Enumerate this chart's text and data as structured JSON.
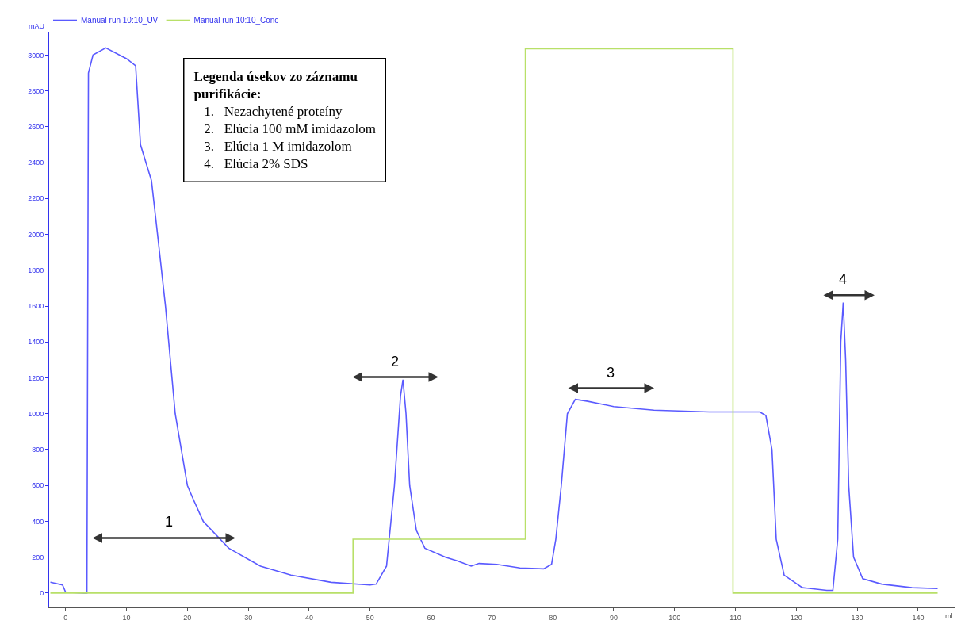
{
  "chart_data": {
    "type": "line",
    "xlabel": "ml",
    "ylabel": "mAU",
    "xlim": [
      -2.7,
      146
    ],
    "xticks": [
      0,
      10,
      20,
      30,
      40,
      50,
      60,
      70,
      80,
      90,
      100,
      110,
      120,
      130,
      140
    ],
    "ylim": [
      -80,
      3130
    ],
    "yticks": [
      0,
      200,
      400,
      600,
      800,
      1000,
      1200,
      1400,
      1600,
      1800,
      2000,
      2200,
      2400,
      2600,
      2800,
      3000
    ],
    "legend": "top left",
    "marker": "none",
    "line_style": "solid",
    "series": [
      {
        "name": "Manual run 10:10_UV",
        "color": "#5a5aff",
        "x": [
          -2.5,
          -0.5,
          0,
          3,
          3.5,
          3.75,
          4.5,
          6.6,
          10,
          11.5,
          12.3,
          14.1,
          15.1,
          16.4,
          18,
          20,
          21,
          22.6,
          26.8,
          32,
          37,
          43.6,
          50,
          51,
          52.7,
          54,
          55,
          55.4,
          55.9,
          56.5,
          57.6,
          59,
          62.4,
          64.3,
          66.6,
          67.9,
          70.8,
          74.6,
          78.5,
          79.8,
          80.5,
          81.4,
          82.4,
          83.7,
          85.6,
          90,
          96.6,
          105.7,
          114,
          115,
          116,
          116.7,
          118,
          121,
          125,
          126,
          126.8,
          127.3,
          127.7,
          128.1,
          128.6,
          129.4,
          130.9,
          134,
          139,
          143.2
        ],
        "values": [
          60,
          45,
          5,
          0,
          0,
          2900,
          3000,
          3040,
          2980,
          2940,
          2500,
          2300,
          2000,
          1600,
          1000,
          600,
          520,
          400,
          250,
          150,
          100,
          60,
          45,
          50,
          150,
          600,
          1100,
          1190,
          1000,
          600,
          350,
          250,
          200,
          180,
          150,
          165,
          160,
          140,
          135,
          160,
          300,
          600,
          1000,
          1080,
          1070,
          1040,
          1020,
          1010,
          1010,
          990,
          800,
          300,
          100,
          30,
          15,
          15,
          300,
          1400,
          1620,
          1300,
          600,
          200,
          80,
          50,
          30,
          25
        ]
      },
      {
        "name": "Manual run 10:10_Conc",
        "color": "#b8e068",
        "type": "step",
        "x": [
          -2.5,
          47.2,
          75.5,
          109.6,
          143.2
        ],
        "values": [
          0,
          300,
          3035,
          0,
          0
        ]
      }
    ],
    "annotations": [
      "Legenda úsekov zo záznamu purifikácie:",
      "1.   Nezachytené proteíny",
      "2.   Elúcia 100 mM imidazolom",
      "3.   Elúcia 1 M imidazolom",
      "4.   Elúcia 2% SDS",
      "1",
      "2",
      "3",
      "4"
    ]
  }
}
